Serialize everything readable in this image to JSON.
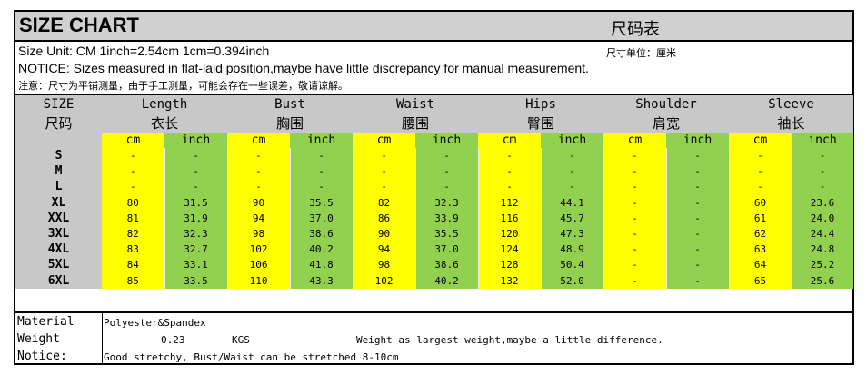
{
  "title": {
    "en": "SIZE CHART",
    "zh": "尺码表"
  },
  "info": {
    "unit_line": "Size Unit: CM  1inch=2.54cm  1cm=0.394inch",
    "unit_zh": "尺寸单位：厘米",
    "notice_en": "NOTICE: Sizes measured in flat-laid position,maybe have little discrepancy for manual measurement.",
    "notice_zh": "注意：尺寸为平铺测量，由于手工测量，可能会存在一些误差，敬请谅解。"
  },
  "columns": [
    {
      "en": "SIZE",
      "zh": "尺码"
    },
    {
      "en": "Length",
      "zh": "衣长"
    },
    {
      "en": "Bust",
      "zh": "胸围"
    },
    {
      "en": "Waist",
      "zh": "腰围"
    },
    {
      "en": "Hips",
      "zh": "臀围"
    },
    {
      "en": "Shoulder",
      "zh": "肩宽"
    },
    {
      "en": "Sleeve",
      "zh": "袖长"
    }
  ],
  "units": [
    "cm",
    "inch"
  ],
  "rows": [
    {
      "size": "S",
      "values": [
        "-",
        "-",
        "-",
        "-",
        "-",
        "-",
        "-",
        "-",
        "-",
        "-",
        "-",
        "-"
      ]
    },
    {
      "size": "M",
      "values": [
        "-",
        "-",
        "-",
        "-",
        "-",
        "-",
        "-",
        "-",
        "-",
        "-",
        "-",
        "-"
      ]
    },
    {
      "size": "L",
      "values": [
        "-",
        "-",
        "-",
        "-",
        "-",
        "-",
        "-",
        "-",
        "-",
        "-",
        "-",
        "-"
      ]
    },
    {
      "size": "XL",
      "values": [
        "80",
        "31.5",
        "90",
        "35.5",
        "82",
        "32.3",
        "112",
        "44.1",
        "-",
        "-",
        "60",
        "23.6"
      ]
    },
    {
      "size": "XXL",
      "values": [
        "81",
        "31.9",
        "94",
        "37.0",
        "86",
        "33.9",
        "116",
        "45.7",
        "-",
        "-",
        "61",
        "24.0"
      ]
    },
    {
      "size": "3XL",
      "values": [
        "82",
        "32.3",
        "98",
        "38.6",
        "90",
        "35.5",
        "120",
        "47.3",
        "-",
        "-",
        "62",
        "24.4"
      ]
    },
    {
      "size": "4XL",
      "values": [
        "83",
        "32.7",
        "102",
        "40.2",
        "94",
        "37.0",
        "124",
        "48.9",
        "-",
        "-",
        "63",
        "24.8"
      ]
    },
    {
      "size": "5XL",
      "values": [
        "84",
        "33.1",
        "106",
        "41.8",
        "98",
        "38.6",
        "128",
        "50.4",
        "-",
        "-",
        "64",
        "25.2"
      ]
    },
    {
      "size": "6XL",
      "values": [
        "85",
        "33.5",
        "110",
        "43.3",
        "102",
        "40.2",
        "132",
        "52.0",
        "-",
        "-",
        "65",
        "25.6"
      ]
    }
  ],
  "footer": {
    "material_label": "Material",
    "material_value": "Polyester&Spandex",
    "weight_label": "Weight",
    "weight_value": "0.23",
    "weight_unit": "KGS",
    "weight_note": "Weight as largest weight,maybe a little difference.",
    "notice_label": "Notice:",
    "notice_value": "Good stretchy, Bust/Waist can be stretched 8-10cm"
  },
  "colors": {
    "header_gray": "#c8c8c8",
    "cm_yellow": "#ffff00",
    "inch_green": "#92d050"
  }
}
